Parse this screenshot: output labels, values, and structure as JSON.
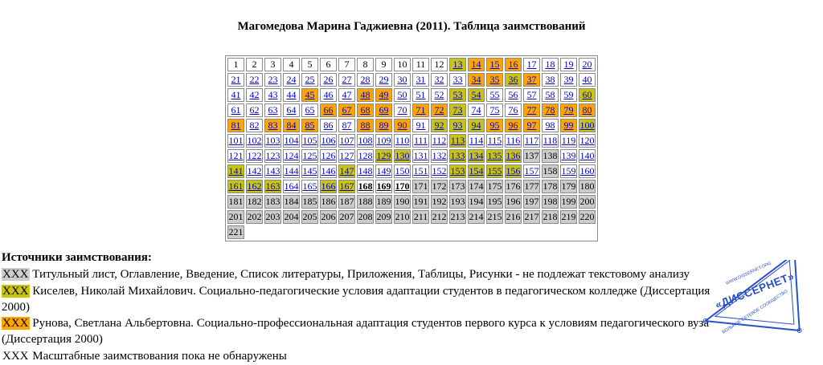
{
  "page": {
    "title": "Магомедова Марина Гаджиевна (2011). Таблица заимствований"
  },
  "grid": {
    "columns": 20,
    "total_pages": 221,
    "categories": {
      "p": {
        "bg": "#ffffff",
        "text": "#000000",
        "link": false,
        "bold": false
      },
      "w": {
        "bg": "#ffffff",
        "text": "#0000cc",
        "link": true,
        "bold": false
      },
      "k": {
        "bg": "#c9c411",
        "text": "#0000cc",
        "link": true,
        "bold": false
      },
      "r": {
        "bg": "#ffa500",
        "text": "#0000cc",
        "link": true,
        "bold": false
      },
      "g": {
        "bg": "#cccccc",
        "text": "#000000",
        "link": false,
        "bold": false
      },
      "b": {
        "bg": "#ffffff",
        "text": "#000000",
        "link": true,
        "bold": true
      }
    },
    "rows": [
      "ppppppppppppkrrrwwww",
      "wwwwwwwwwwwwwrrkrwww",
      "wwwwrwwrrwwwkkwwwwwk",
      "wwwwwrrrrwrrkwwwrrrr",
      "rwrrrwwrrrwkkkrrrwrk",
      "wwwwwwwwwwwwkwwwwwww",
      "wwwwwwwwkkwwkkkkggww",
      "kwwwwwkwwwwwkkkkwgww",
      "kkkwwkkbbbgggggggggg",
      "gggggggggggggggggggg",
      "gggggggggggggggggggg",
      "g"
    ]
  },
  "legend": {
    "heading": "Источники заимствования:",
    "items": [
      {
        "swatch": "XXX",
        "color": "#cccccc",
        "text": "Титульный лист, Оглавление, Введение, Список литературы, Приложения, Таблицы, Рисунки - не подлежат текстовому анализу"
      },
      {
        "swatch": "XXX",
        "color": "#c9c411",
        "text": "Киселев, Николай Михайлович. Социально-педагогические условия адаптации студентов в педагогическом колледже (Диссертация 2000)"
      },
      {
        "swatch": "XXX",
        "color": "#ffa500",
        "text": "Рунова, Светлана Альбертовна. Социально-профессиональная адаптация студентов первого курса к условиям педагогического вуза (Диссертация 2000)"
      },
      {
        "swatch": "XXX",
        "color": "#ffffff",
        "text": "Масштабные заимствования пока не обнаружены"
      }
    ]
  },
  "logo": {
    "title": "«ДИССЕРНЕТ»",
    "edge_top": "WWW.DISSERNET.ORG",
    "edge_bottom": "ВОЛЬНОЕ СЕТЕВОЕ СООБЩЕСТВО",
    "color": "#2a50c8"
  }
}
